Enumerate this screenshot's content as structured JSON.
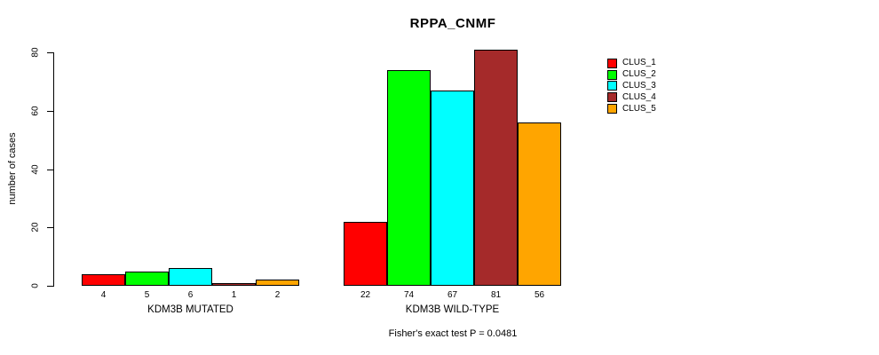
{
  "title": "RPPA_CNMF",
  "y_axis": {
    "label": "number of cases",
    "ticks": [
      0,
      20,
      40,
      60,
      80
    ]
  },
  "footer": "Fisher's exact test P = 0.0481",
  "chart_data": {
    "type": "bar",
    "title": "RPPA_CNMF",
    "xlabel": "",
    "ylabel": "number of cases",
    "ylim": [
      0,
      85
    ],
    "yticks": [
      0,
      20,
      40,
      60,
      80
    ],
    "grid": false,
    "legend_position": "right",
    "series": [
      "CLUS_1",
      "CLUS_2",
      "CLUS_3",
      "CLUS_4",
      "CLUS_5"
    ],
    "colors": [
      "#FF0000",
      "#00FF00",
      "#00FFFF",
      "#A52A2A",
      "#FFA500"
    ],
    "groups": [
      {
        "label": "KDM3B MUTATED",
        "values": [
          4,
          5,
          6,
          1,
          2
        ]
      },
      {
        "label": "KDM3B WILD-TYPE",
        "values": [
          22,
          74,
          67,
          81,
          56
        ]
      }
    ],
    "annotation": "Fisher's exact test P = 0.0481"
  }
}
